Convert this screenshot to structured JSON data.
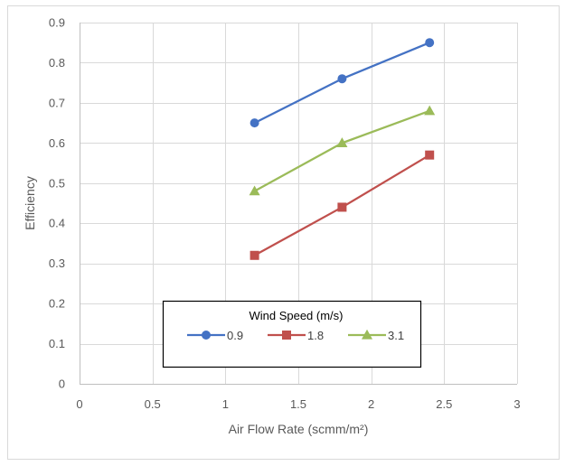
{
  "chart_data": {
    "type": "line",
    "title": "",
    "xlabel": "Air Flow Rate (scmm/m²)",
    "ylabel": "Efficiency",
    "xlim": [
      0,
      3
    ],
    "ylim": [
      0,
      0.9
    ],
    "xticks": [
      0,
      0.5,
      1,
      1.5,
      2,
      2.5,
      3
    ],
    "xtick_labels": [
      "0",
      "0.5",
      "1",
      "1.5",
      "2",
      "2.5",
      "3"
    ],
    "yticks": [
      0,
      0.1,
      0.2,
      0.3,
      0.4,
      0.5,
      0.6,
      0.7,
      0.8,
      0.9
    ],
    "ytick_labels": [
      "0",
      "0.1",
      "0.2",
      "0.3",
      "0.4",
      "0.5",
      "0.6",
      "0.7",
      "0.8",
      "0.9"
    ],
    "grid": true,
    "legend": {
      "title": "Wind Speed (m/s)",
      "placement": "bottom-center"
    },
    "x": [
      1.2,
      1.8,
      2.4
    ],
    "series": [
      {
        "name": "0.9",
        "values": [
          0.65,
          0.76,
          0.85
        ],
        "color": "#4472C4",
        "marker": "circle"
      },
      {
        "name": "1.8",
        "values": [
          0.32,
          0.44,
          0.57
        ],
        "color": "#C0504D",
        "marker": "square"
      },
      {
        "name": "3.1",
        "values": [
          0.48,
          0.6,
          0.68
        ],
        "color": "#9BBB59",
        "marker": "triangle"
      }
    ]
  }
}
